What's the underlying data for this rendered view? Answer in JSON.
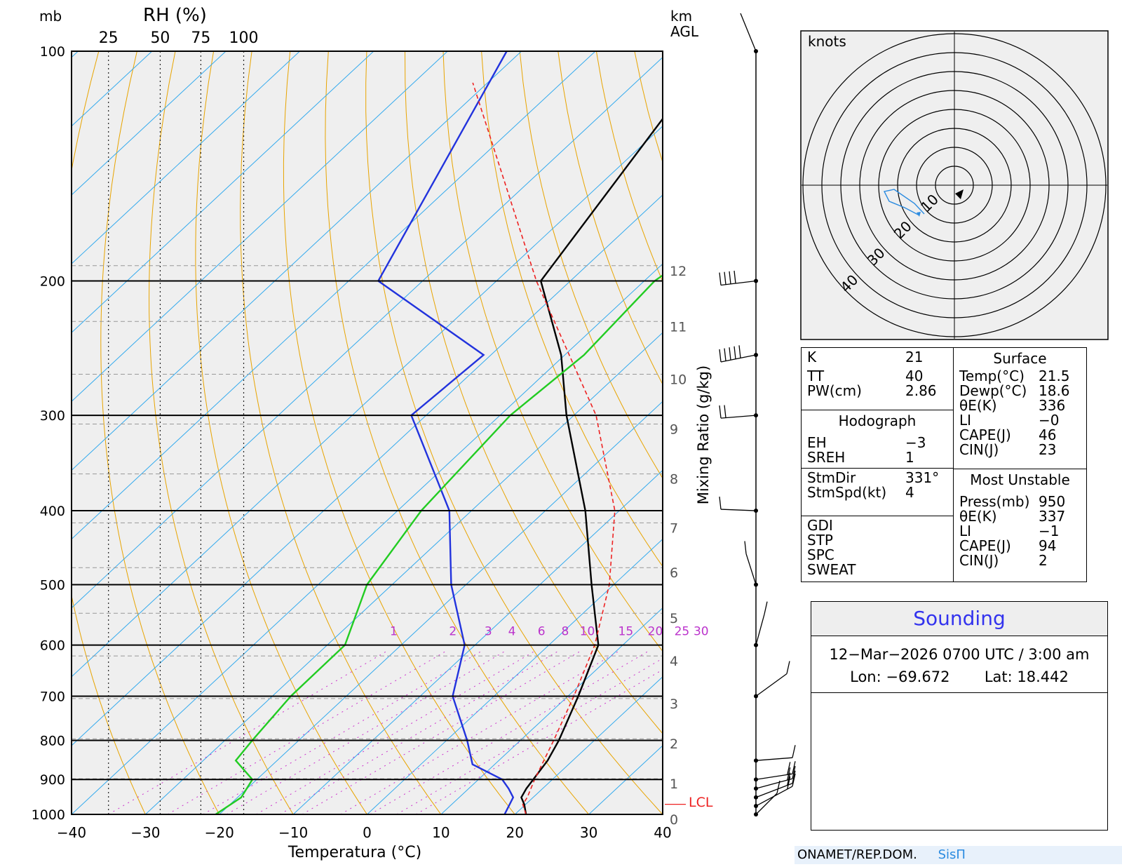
{
  "chart_data": {
    "type": "skew-t",
    "xlabel": "Temperatura (°C)",
    "ylabel_left": "mb",
    "ylabel_right": "km\nAGL",
    "mixing_ratio_label": "Mixing Ratio (g/kg)",
    "rh_label": "RH (%)",
    "xlim": [
      -40,
      40
    ],
    "ylim": [
      1000,
      100
    ],
    "x_ticks": [
      "−40",
      "−30",
      "−20",
      "−10",
      "0",
      "10",
      "20",
      "30",
      "40"
    ],
    "pressure_levels": [
      1000,
      900,
      800,
      700,
      600,
      500,
      400,
      300,
      200,
      100
    ],
    "rh_ticks": [
      "25",
      "50",
      "75",
      "100"
    ],
    "mixing_ratio_ticks": [
      "1",
      "2",
      "3",
      "4",
      "6",
      "8",
      "10",
      "15",
      "20",
      "25",
      "30"
    ],
    "km_ticks": [
      0,
      1,
      2,
      3,
      4,
      5,
      6,
      7,
      8,
      9,
      10,
      11,
      12
    ],
    "lcl_label": "LCL",
    "lcl_pressure": 970,
    "series": [
      {
        "name": "temperature",
        "color": "#000000",
        "points": [
          [
            1000,
            21.5
          ],
          [
            970,
            19.8
          ],
          [
            950,
            18.4
          ],
          [
            925,
            17.8
          ],
          [
            850,
            16.6
          ],
          [
            800,
            15.2
          ],
          [
            700,
            11.4
          ],
          [
            600,
            6.7
          ],
          [
            500,
            -3.0
          ],
          [
            400,
            -14.6
          ],
          [
            300,
            -31.0
          ],
          [
            250,
            -40.5
          ],
          [
            200,
            -54.0
          ],
          [
            100,
            -64.0
          ]
        ]
      },
      {
        "name": "dewpoint",
        "color": "#2233dd",
        "points": [
          [
            1000,
            18.6
          ],
          [
            950,
            17.3
          ],
          [
            925,
            15.4
          ],
          [
            900,
            13.2
          ],
          [
            860,
            7.0
          ],
          [
            800,
            2.8
          ],
          [
            700,
            -5.6
          ],
          [
            600,
            -11.4
          ],
          [
            500,
            -22.0
          ],
          [
            400,
            -33.0
          ],
          [
            300,
            -52.0
          ],
          [
            250,
            -51.0
          ],
          [
            200,
            -76.0
          ],
          [
            100,
            -92.0
          ]
        ]
      },
      {
        "name": "parcel",
        "color": "#ee2222",
        "points": [
          [
            1000,
            21.5
          ],
          [
            970,
            19.6
          ],
          [
            950,
            19.2
          ],
          [
            900,
            17.6
          ],
          [
            800,
            14.5
          ],
          [
            700,
            10.8
          ],
          [
            600,
            6.2
          ],
          [
            500,
            -0.6
          ],
          [
            400,
            -10.6
          ],
          [
            300,
            -27.0
          ],
          [
            200,
            -54.6
          ],
          [
            110,
            -92.0
          ]
        ]
      },
      {
        "name": "rh",
        "color": "#22cc22",
        "points": [
          [
            1000,
            -20.5
          ],
          [
            950,
            -19.5
          ],
          [
            900,
            -20.6
          ],
          [
            850,
            -25.6
          ],
          [
            800,
            -26.3
          ],
          [
            700,
            -27.5
          ],
          [
            600,
            -27.6
          ],
          [
            500,
            -33.4
          ],
          [
            400,
            -36.8
          ],
          [
            300,
            -38.6
          ],
          [
            250,
            -37.4
          ],
          [
            200,
            -38.6
          ],
          [
            100,
            -27.6
          ]
        ]
      }
    ],
    "wind_levels_mb": [
      1000,
      975,
      950,
      925,
      900,
      850,
      700,
      600,
      500,
      400,
      300,
      250,
      200,
      100
    ]
  },
  "hodograph": {
    "units_label": "knots",
    "ring_labels": [
      "10",
      "20",
      "30",
      "40"
    ]
  },
  "indices": {
    "k": {
      "label": "K",
      "value": "21"
    },
    "tt": {
      "label": "TT",
      "value": "40"
    },
    "pw": {
      "label": "PW(cm)",
      "value": "2.86"
    },
    "hodo_header": "Hodograph",
    "eh": {
      "label": "EH",
      "value": "−3"
    },
    "sreh": {
      "label": "SREH",
      "value": "1"
    },
    "stmdir": {
      "label": "StmDir",
      "value": "331°"
    },
    "stmspd": {
      "label": "StmSpd(kt)",
      "value": "4"
    },
    "gdi": {
      "label": "GDI",
      "value": ""
    },
    "stp": {
      "label": "STP",
      "value": ""
    },
    "spc": {
      "label": "SPC",
      "value": ""
    },
    "sweat": {
      "label": "SWEAT",
      "value": ""
    }
  },
  "surface": {
    "header": "Surface",
    "temp": {
      "label": "Temp(°C)",
      "value": "21.5"
    },
    "dewp": {
      "label": "Dewp(°C)",
      "value": "18.6"
    },
    "thetae": {
      "label": "θE(K)",
      "value": "336"
    },
    "li": {
      "label": "LI",
      "value": "−0"
    },
    "cape": {
      "label": "CAPE(J)",
      "value": "46"
    },
    "cin": {
      "label": "CIN(J)",
      "value": "23"
    }
  },
  "most_unstable": {
    "header": "Most Unstable",
    "press": {
      "label": "Press(mb)",
      "value": "950"
    },
    "thetae": {
      "label": "θE(K)",
      "value": "337"
    },
    "li": {
      "label": "LI",
      "value": "−1"
    },
    "cape": {
      "label": "CAPE(J)",
      "value": "94"
    },
    "cin": {
      "label": "CIN(J)",
      "value": "2"
    }
  },
  "sounding": {
    "title": "Sounding",
    "datetime": "12−Mar−2026 0700  UTC / 3:00 am",
    "lon": "Lon: −69.672",
    "lat": "Lat: 18.442"
  },
  "footer": {
    "org": "ONAMET/REP.DOM.",
    "brand": "SisΠ"
  }
}
